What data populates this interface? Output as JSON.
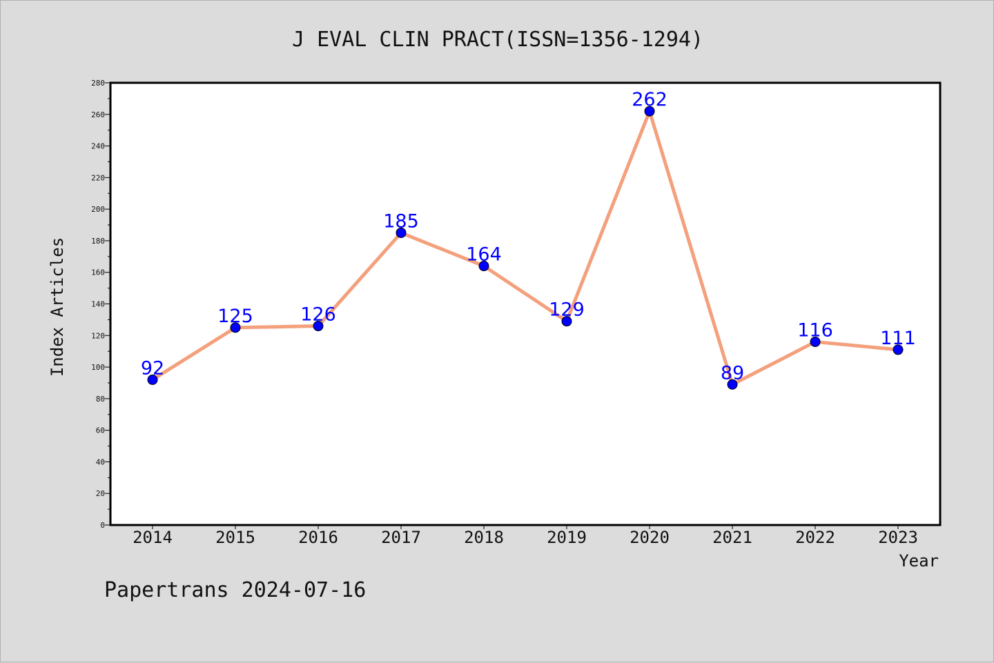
{
  "chart_data": {
    "type": "line",
    "title": "J EVAL CLIN PRACT(ISSN=1356-1294)",
    "xlabel": "Year",
    "ylabel": "Index Articles",
    "categories": [
      "2014",
      "2015",
      "2016",
      "2017",
      "2018",
      "2019",
      "2020",
      "2021",
      "2022",
      "2023"
    ],
    "values": [
      92,
      125,
      126,
      185,
      164,
      129,
      262,
      89,
      116,
      111
    ],
    "data_labels": [
      "92",
      "125",
      "126",
      "185",
      "164",
      "129",
      "262",
      "89",
      "116",
      "111"
    ],
    "yticks": [
      "0",
      "20",
      "40",
      "60",
      "80",
      "100",
      "120",
      "140",
      "160",
      "180",
      "200",
      "220",
      "240",
      "260",
      "280"
    ],
    "ylim": [
      0,
      280
    ],
    "grid": false,
    "line_color": "#f4a07c",
    "marker_color": "#0000ff",
    "label_color": "#0000ff"
  },
  "footer": "Papertrans 2024-07-16"
}
